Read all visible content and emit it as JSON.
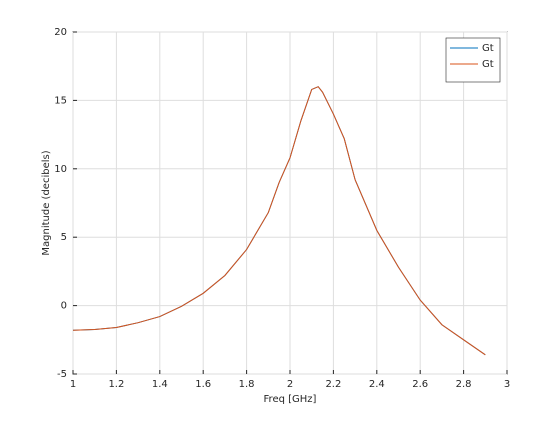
{
  "chart_data": {
    "type": "line",
    "x": [
      1.0,
      1.1,
      1.2,
      1.3,
      1.4,
      1.5,
      1.6,
      1.7,
      1.8,
      1.9,
      1.95,
      2.0,
      2.05,
      2.1,
      2.13,
      2.15,
      2.2,
      2.25,
      2.3,
      2.4,
      2.5,
      2.6,
      2.7,
      2.8,
      2.9
    ],
    "series": [
      {
        "name": "Gt",
        "color": "#0072bd",
        "values": [
          -1.8,
          -1.75,
          -1.6,
          -1.25,
          -0.8,
          -0.05,
          0.9,
          2.2,
          4.1,
          6.8,
          9.0,
          10.8,
          13.5,
          15.8,
          16.0,
          15.6,
          14.0,
          12.2,
          9.2,
          5.5,
          2.8,
          0.4,
          -1.4,
          -2.5,
          -3.6
        ]
      },
      {
        "name": "Gt",
        "color": "#d95319",
        "values": [
          -1.8,
          -1.75,
          -1.6,
          -1.25,
          -0.8,
          -0.05,
          0.9,
          2.2,
          4.1,
          6.8,
          9.0,
          10.8,
          13.5,
          15.8,
          16.0,
          15.6,
          14.0,
          12.2,
          9.2,
          5.5,
          2.8,
          0.4,
          -1.4,
          -2.5,
          -3.6
        ]
      }
    ],
    "xlabel": "Freq [GHz]",
    "ylabel": "Magnitude (decibels)",
    "xlim": [
      1,
      3
    ],
    "ylim": [
      -5,
      20
    ],
    "xticks": [
      1,
      1.2,
      1.4,
      1.6,
      1.8,
      2,
      2.2,
      2.4,
      2.6,
      2.8,
      3
    ],
    "yticks": [
      -5,
      0,
      5,
      10,
      15,
      20
    ],
    "grid": true,
    "legend": "northeast"
  }
}
